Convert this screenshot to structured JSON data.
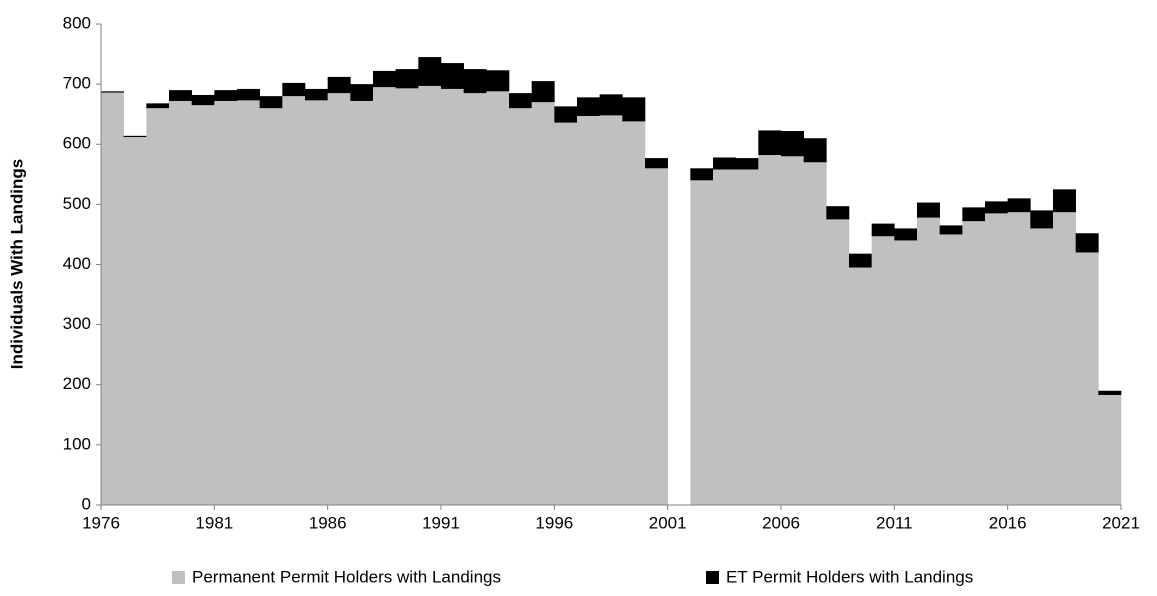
{
  "chart_data": {
    "type": "bar",
    "stacked": true,
    "y_label": "Individuals With Landings",
    "x": [
      1976,
      1977,
      1978,
      1979,
      1980,
      1981,
      1982,
      1983,
      1984,
      1985,
      1986,
      1987,
      1988,
      1989,
      1990,
      1991,
      1992,
      1993,
      1994,
      1995,
      1996,
      1997,
      1998,
      1999,
      2000,
      2001,
      2002,
      2003,
      2004,
      2005,
      2006,
      2007,
      2008,
      2009,
      2010,
      2011,
      2012,
      2013,
      2014,
      2015,
      2016,
      2017,
      2018,
      2019,
      2020
    ],
    "series": [
      {
        "name": "Permanent Permit Holders with Landings",
        "color": "#c0c0c0",
        "values": [
          686,
          612,
          660,
          672,
          665,
          672,
          673,
          660,
          680,
          673,
          685,
          672,
          695,
          693,
          697,
          692,
          685,
          688,
          660,
          670,
          636,
          647,
          648,
          638,
          560,
          null,
          540,
          558,
          558,
          582,
          580,
          570,
          475,
          395,
          447,
          440,
          478,
          450,
          472,
          485,
          487,
          460,
          487,
          420,
          183
        ]
      },
      {
        "name": "ET Permit Holders with Landings",
        "color": "#000000",
        "values": [
          2,
          2,
          8,
          18,
          17,
          18,
          19,
          20,
          22,
          19,
          27,
          28,
          27,
          32,
          48,
          43,
          40,
          35,
          25,
          35,
          27,
          31,
          35,
          40,
          17,
          null,
          20,
          20,
          19,
          41,
          42,
          40,
          22,
          23,
          21,
          20,
          25,
          15,
          23,
          20,
          23,
          30,
          38,
          32,
          7
        ]
      }
    ],
    "xlim": [
      1976,
      2021
    ],
    "xticks": [
      1976,
      1981,
      1986,
      1991,
      1996,
      2001,
      2006,
      2011,
      2016,
      2021
    ],
    "ylim": [
      0,
      800
    ],
    "yticks": [
      0,
      100,
      200,
      300,
      400,
      500,
      600,
      700,
      800
    ],
    "legend": "bottom"
  }
}
